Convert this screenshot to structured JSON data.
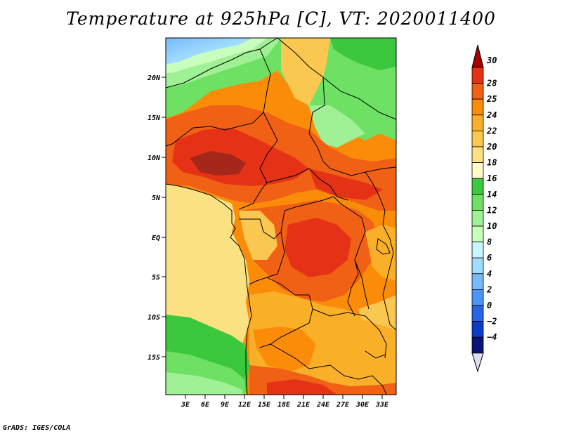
{
  "title": "Temperature at 925hPa [C], VT: 2020011400",
  "footer": "GrADS: IGES/COLA",
  "map": {
    "lat_labels": [
      "20N",
      "15N",
      "10N",
      "5N",
      "EQ",
      "5S",
      "10S",
      "15S"
    ],
    "lon_labels": [
      "3E",
      "6E",
      "9E",
      "12E",
      "15E",
      "18E",
      "21E",
      "24E",
      "27E",
      "30E",
      "33E"
    ]
  },
  "colorbar": {
    "levels": [
      "30",
      "28",
      "25",
      "24",
      "22",
      "20",
      "18",
      "16",
      "14",
      "12",
      "10",
      "8",
      "6",
      "4",
      "2",
      "0",
      "−2",
      "−4"
    ],
    "colors": [
      "#a50000",
      "#e53217",
      "#f06015",
      "#fa8c0a",
      "#faaf28",
      "#fac850",
      "#fae182",
      "#fffac8",
      "#3cc83c",
      "#6ee164",
      "#a0f096",
      "#c8ffbe",
      "#c8f5ff",
      "#a0dcff",
      "#78b9fa",
      "#4b96f5",
      "#2864e6",
      "#0a3cc8",
      "#0a1478",
      "#dcdcf5"
    ]
  }
}
